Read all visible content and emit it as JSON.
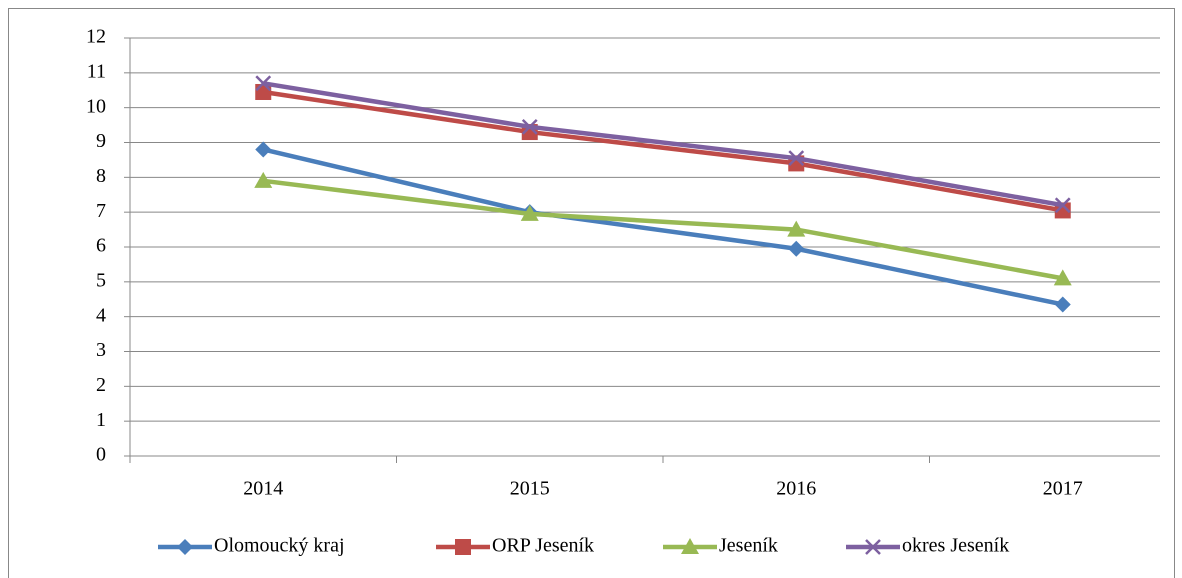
{
  "chart_data": {
    "type": "line",
    "categories": [
      "2014",
      "2015",
      "2016",
      "2017"
    ],
    "series": [
      {
        "name": "Olomoucký kraj",
        "color": "#4a7ebb",
        "marker": "diamond",
        "values": [
          8.8,
          7.0,
          5.95,
          4.35
        ]
      },
      {
        "name": "ORP Jeseník",
        "color": "#be4b48",
        "marker": "square",
        "values": [
          10.45,
          9.3,
          8.4,
          7.05
        ]
      },
      {
        "name": "Jeseník",
        "color": "#98b954",
        "marker": "triangle",
        "values": [
          7.9,
          6.95,
          6.5,
          5.1
        ]
      },
      {
        "name": "okres Jeseník",
        "color": "#7d60a0",
        "marker": "x",
        "values": [
          10.7,
          9.45,
          8.55,
          7.2
        ]
      }
    ],
    "ylim": [
      0,
      12
    ],
    "yticks": [
      0,
      1,
      2,
      3,
      4,
      5,
      6,
      7,
      8,
      9,
      10,
      11,
      12
    ],
    "grid": true,
    "legend": "bottom"
  }
}
